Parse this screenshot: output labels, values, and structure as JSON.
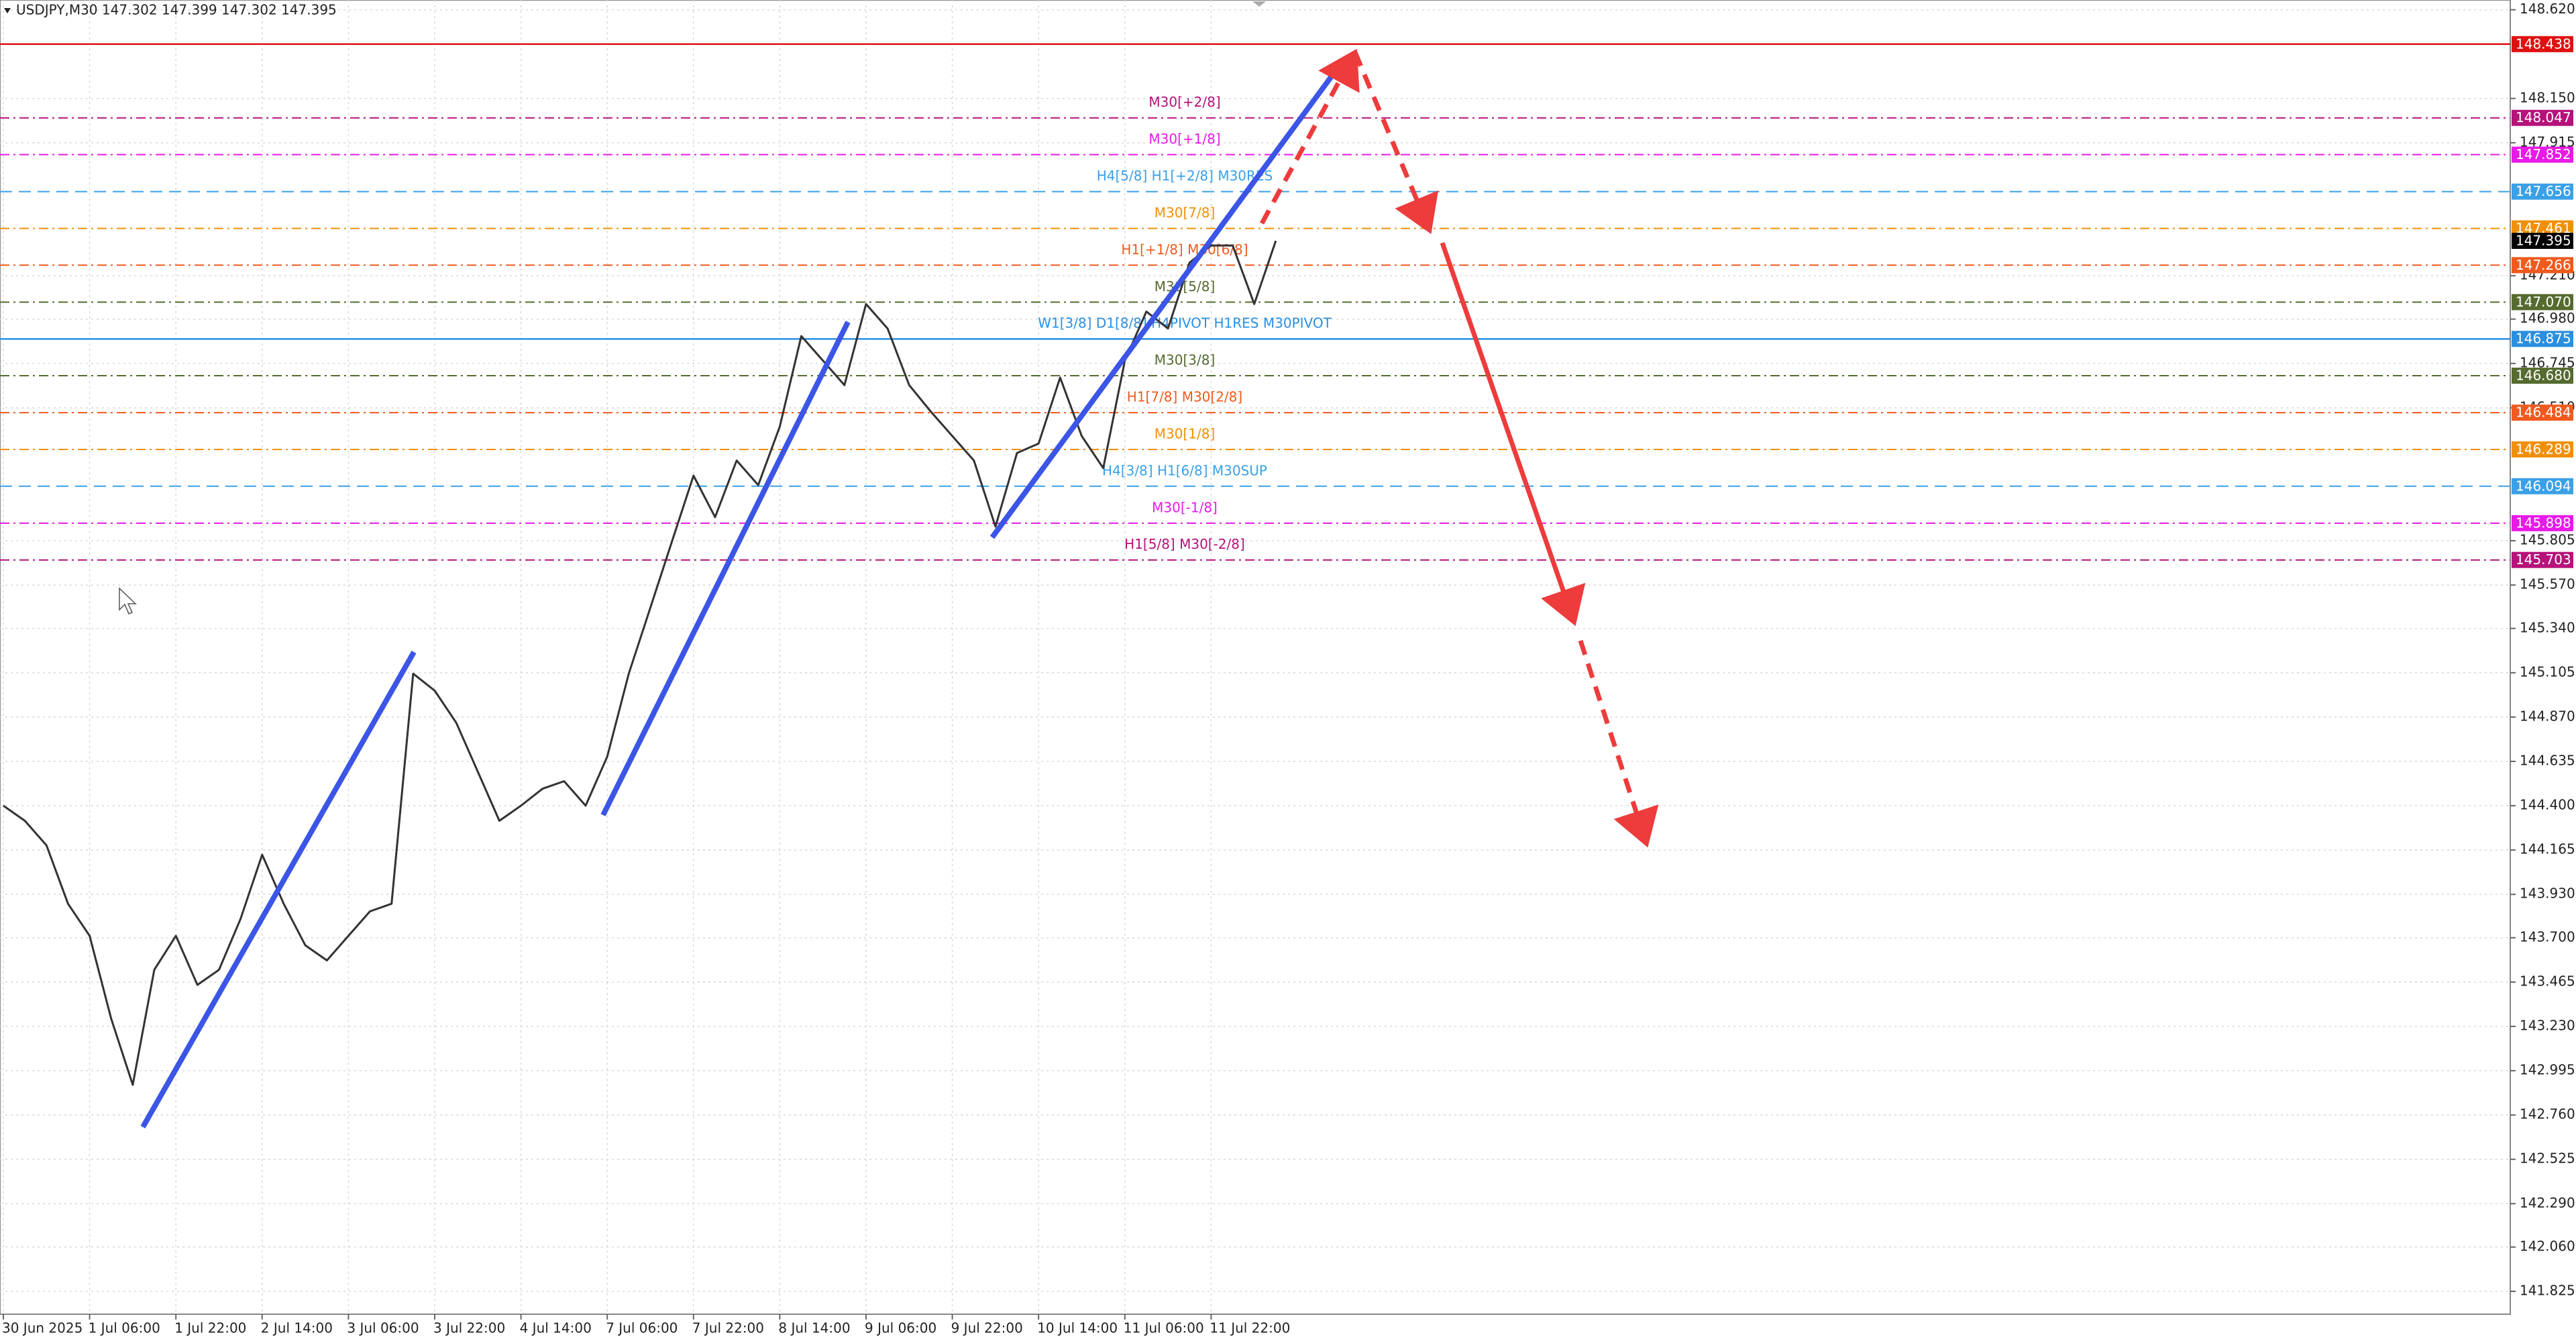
{
  "chart_data": {
    "type": "line",
    "title": "USDJPY,M30  147.302 147.399 147.302 147.395",
    "categories": [
      "30 Jun 2025",
      null,
      null,
      null,
      "1 Jul 06:00",
      null,
      null,
      null,
      "1 Jul 22:00",
      null,
      null,
      null,
      "2 Jul 14:00",
      null,
      null,
      null,
      "3 Jul 06:00",
      null,
      null,
      null,
      "3 Jul 22:00",
      null,
      null,
      null,
      "4 Jul 14:00",
      null,
      null,
      null,
      "7 Jul 06:00",
      null,
      null,
      null,
      "7 Jul 22:00",
      null,
      null,
      null,
      "8 Jul 14:00",
      null,
      null,
      null,
      "9 Jul 06:00",
      null,
      null,
      null,
      "9 Jul 22:00",
      null,
      null,
      null,
      "10 Jul 14:00",
      null,
      null,
      null,
      "11 Jul 06:00",
      null,
      null,
      null,
      "11 Jul 22:00",
      null,
      null,
      null
    ],
    "series": [
      {
        "name": "USDJPY",
        "color": "#333333",
        "values": [
          144.4,
          144.32,
          144.19,
          143.88,
          143.71,
          143.27,
          142.92,
          143.53,
          143.71,
          143.45,
          143.53,
          143.8,
          144.14,
          143.88,
          143.66,
          143.58,
          143.71,
          143.84,
          143.88,
          145.1,
          145.01,
          144.84,
          144.58,
          144.32,
          144.4,
          144.49,
          144.53,
          144.4,
          144.66,
          145.1,
          145.45,
          145.8,
          146.15,
          145.93,
          146.23,
          146.1,
          146.41,
          146.89,
          146.76,
          146.63,
          147.06,
          146.93,
          146.63,
          146.49,
          146.36,
          146.23,
          145.88,
          146.27,
          146.32,
          146.67,
          146.36,
          146.19,
          146.76,
          147.02,
          146.93,
          147.28,
          147.37,
          147.37,
          147.06,
          147.395
        ]
      }
    ],
    "ylim": [
      141.704,
      148.672
    ],
    "yticks": [
      {
        "value": 148.62,
        "label": "148.620"
      },
      {
        "value": 148.15,
        "label": "148.150"
      },
      {
        "value": 147.915,
        "label": "147.915"
      },
      {
        "value": 147.21,
        "label": "147.210"
      },
      {
        "value": 146.98,
        "label": "146.980"
      },
      {
        "value": 146.745,
        "label": "146.745"
      },
      {
        "value": 146.51,
        "label": "146.510"
      },
      {
        "value": 145.805,
        "label": "145.805"
      },
      {
        "value": 145.57,
        "label": "145.570"
      },
      {
        "value": 145.34,
        "label": "145.340"
      },
      {
        "value": 145.105,
        "label": "145.105"
      },
      {
        "value": 144.87,
        "label": "144.870"
      },
      {
        "value": 144.635,
        "label": "144.635"
      },
      {
        "value": 144.4,
        "label": "144.400"
      },
      {
        "value": 144.165,
        "label": "144.165"
      },
      {
        "value": 143.93,
        "label": "143.930"
      },
      {
        "value": 143.7,
        "label": "143.700"
      },
      {
        "value": 143.465,
        "label": "143.465"
      },
      {
        "value": 143.23,
        "label": "143.230"
      },
      {
        "value": 142.995,
        "label": "142.995"
      },
      {
        "value": 142.76,
        "label": "142.760"
      },
      {
        "value": 142.525,
        "label": "142.525"
      },
      {
        "value": 142.29,
        "label": "142.290"
      },
      {
        "value": 142.06,
        "label": "142.060"
      },
      {
        "value": 141.825,
        "label": "141.825"
      }
    ],
    "grid": true,
    "levels": [
      {
        "label": null,
        "value": 148.438,
        "value_label": "148.438",
        "color": "#e01010",
        "style": "solid"
      },
      {
        "label": "M30[+2/8]",
        "value": 148.047,
        "value_label": "148.047",
        "color": "#b5127a",
        "style": "dashdot"
      },
      {
        "label": "M30[+1/8]",
        "value": 147.852,
        "value_label": "147.852",
        "color": "#e81ae8",
        "style": "dashdot"
      },
      {
        "label": "H4[5/8] H1[+2/8] M30RES",
        "value": 147.656,
        "value_label": "147.656",
        "color": "#3aa0e8",
        "style": "dash"
      },
      {
        "label": "M30[7/8]",
        "value": 147.461,
        "value_label": "147.461",
        "color": "#f0900a",
        "style": "dashdot"
      },
      {
        "label": "H1[+1/8] M30[6/8]",
        "value": 147.266,
        "value_label": "147.266",
        "color": "#f05a1e",
        "style": "dashdot"
      },
      {
        "label": "M30[5/8]",
        "value": 147.07,
        "value_label": "147.070",
        "color": "#556b2f",
        "style": "dashdot"
      },
      {
        "label": "W1[3/8] D1[8/8] H4PIVOT H1RES M30PIVOT",
        "value": 146.875,
        "value_label": "146.875",
        "color": "#2b8fe0",
        "style": "solid"
      },
      {
        "label": "M30[3/8]",
        "value": 146.68,
        "value_label": "146.680",
        "color": "#556b2f",
        "style": "dashdot"
      },
      {
        "label": "H1[7/8] M30[2/8]",
        "value": 146.484,
        "value_label": "146.484",
        "color": "#f05a1e",
        "style": "dashdot"
      },
      {
        "label": "M30[1/8]",
        "value": 146.289,
        "value_label": "146.289",
        "color": "#f0900a",
        "style": "dashdot"
      },
      {
        "label": "H4[3/8] H1[6/8] M30SUP",
        "value": 146.094,
        "value_label": "146.094",
        "color": "#3aa0e8",
        "style": "dash"
      },
      {
        "label": "M30[-1/8]",
        "value": 145.898,
        "value_label": "145.898",
        "color": "#e81ae8",
        "style": "dashdot"
      },
      {
        "label": "H1[5/8] M30[-2/8]",
        "value": 145.703,
        "value_label": "145.703",
        "color": "#b5127a",
        "style": "dashdot"
      }
    ],
    "current_price": {
      "value": 147.395,
      "value_label": "147.395",
      "color": "#000000"
    }
  }
}
